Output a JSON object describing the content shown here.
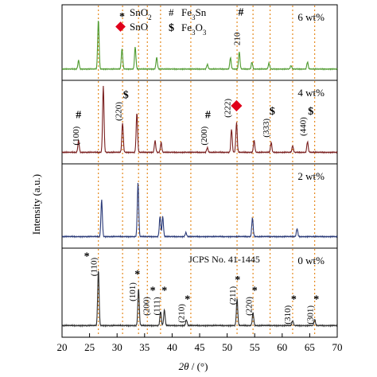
{
  "chart_data": {
    "type": "line",
    "xlabel_theta": "2θ",
    "xlabel_unit": " / (°)",
    "ylabel": "Intensity (a.u.)",
    "xlim": [
      20,
      70
    ],
    "xticks": [
      "20",
      "25",
      "30",
      "35",
      "40",
      "45",
      "50",
      "55",
      "60",
      "65",
      "70"
    ],
    "panel_order": [
      "6 wt%",
      "4 wt%",
      "2 wt%",
      "0 wt%"
    ],
    "reference_lines": [
      26.6,
      33.9,
      37.9,
      51.8,
      54.7,
      57.8,
      61.9,
      65.9,
      31.0,
      35.5,
      43.4
    ],
    "legend": {
      "sno2_symbol": "*",
      "sno2_label": "SnO",
      "sno2_sub": "2",
      "sno_label": "SnO",
      "fe3sn_symbol": "#",
      "fe3sn_label": "Fe",
      "fe3sn_sub": "3",
      "fe3sn_tail": "Sn",
      "fe3o3_symbol": "$",
      "fe3o3_label": "Fe",
      "fe3o3_sub1": "3",
      "fe3o3_mid": "O",
      "fe3o3_sub2": "3"
    },
    "series": [
      {
        "name": "6 wt%",
        "color": "#4e9a2e",
        "peaks": [
          [
            23.0,
            0.15
          ],
          [
            26.6,
            0.85
          ],
          [
            30.9,
            0.35
          ],
          [
            33.3,
            0.38
          ],
          [
            37.2,
            0.2
          ],
          [
            46.4,
            0.08
          ],
          [
            50.6,
            0.2
          ],
          [
            52.2,
            0.3
          ],
          [
            54.5,
            0.12
          ],
          [
            57.6,
            0.1
          ],
          [
            61.6,
            0.06
          ],
          [
            64.6,
            0.12
          ]
        ],
        "annotations": [
          {
            "text": "#",
            "x": 52.5,
            "y": 0.95
          },
          {
            "text": "210",
            "x": 52.3,
            "y": 0.55,
            "rotate": true
          }
        ]
      },
      {
        "name": "4 wt%",
        "color": "#7a1f1f",
        "peaks": [
          [
            23.0,
            0.18
          ],
          [
            27.5,
            1.0
          ],
          [
            31.0,
            0.45
          ],
          [
            33.6,
            0.6
          ],
          [
            36.9,
            0.18
          ],
          [
            38.0,
            0.15
          ],
          [
            46.4,
            0.07
          ],
          [
            50.8,
            0.35
          ],
          [
            51.7,
            0.45
          ],
          [
            54.9,
            0.18
          ],
          [
            58.0,
            0.15
          ],
          [
            61.9,
            0.1
          ],
          [
            64.6,
            0.16
          ]
        ],
        "annotations": [
          {
            "text": "#",
            "x": 23.0,
            "y": 0.55
          },
          {
            "text": "(100)",
            "x": 23.0,
            "y": 0.28,
            "rotate": true
          },
          {
            "text": "(220)",
            "x": 30.8,
            "y": 0.65,
            "rotate": true
          },
          {
            "text": "$",
            "x": 31.6,
            "y": 0.85
          },
          {
            "text": "#",
            "x": 46.5,
            "y": 0.55
          },
          {
            "text": "(200)",
            "x": 46.3,
            "y": 0.28,
            "rotate": true
          },
          {
            "text": "(222)",
            "x": 50.6,
            "y": 0.7,
            "rotate": true
          },
          {
            "text": "(333)",
            "x": 57.6,
            "y": 0.4,
            "rotate": true
          },
          {
            "text": "$",
            "x": 58.2,
            "y": 0.6
          },
          {
            "text": "(440)",
            "x": 64.3,
            "y": 0.42,
            "rotate": true
          },
          {
            "text": "$",
            "x": 65.2,
            "y": 0.6
          }
        ]
      },
      {
        "name": "2 wt%",
        "color": "#2a3a78",
        "peaks": [
          [
            27.2,
            0.55
          ],
          [
            33.8,
            0.8
          ],
          [
            37.8,
            0.3
          ],
          [
            38.3,
            0.3
          ],
          [
            42.5,
            0.06
          ],
          [
            54.6,
            0.28
          ],
          [
            62.7,
            0.12
          ]
        ],
        "annotations": []
      },
      {
        "name": "0 wt%",
        "color": "#2d2d2d",
        "peaks": [
          [
            26.6,
            0.78
          ],
          [
            33.9,
            0.52
          ],
          [
            37.9,
            0.2
          ],
          [
            38.6,
            0.22
          ],
          [
            42.6,
            0.08
          ],
          [
            51.8,
            0.38
          ],
          [
            54.7,
            0.18
          ],
          [
            61.9,
            0.07
          ],
          [
            65.9,
            0.09
          ]
        ],
        "annotations": [
          {
            "text": "*",
            "x": 24.5,
            "y": 0.95
          },
          {
            "text": "(110)",
            "x": 26.3,
            "y": 0.85,
            "rotate": true
          },
          {
            "text": "*",
            "x": 33.7,
            "y": 0.7
          },
          {
            "text": "(101)",
            "x": 33.3,
            "y": 0.5,
            "rotate": true
          },
          {
            "text": "*",
            "x": 36.5,
            "y": 0.47
          },
          {
            "text": "(200)",
            "x": 35.8,
            "y": 0.3,
            "rotate": true
          },
          {
            "text": "*",
            "x": 38.6,
            "y": 0.47
          },
          {
            "text": "(111)",
            "x": 37.7,
            "y": 0.3,
            "rotate": true
          },
          {
            "text": "*",
            "x": 42.8,
            "y": 0.35
          },
          {
            "text": "(210)",
            "x": 42.2,
            "y": 0.2,
            "rotate": true
          },
          {
            "text": "*",
            "x": 51.9,
            "y": 0.62
          },
          {
            "text": "(211)",
            "x": 51.5,
            "y": 0.45,
            "rotate": true
          },
          {
            "text": "*",
            "x": 55.0,
            "y": 0.47
          },
          {
            "text": "(220)",
            "x": 54.5,
            "y": 0.3,
            "rotate": true
          },
          {
            "text": "*",
            "x": 62.1,
            "y": 0.35
          },
          {
            "text": "(310)",
            "x": 61.5,
            "y": 0.18,
            "rotate": true
          },
          {
            "text": "*",
            "x": 66.2,
            "y": 0.35
          },
          {
            "text": "(301)",
            "x": 65.6,
            "y": 0.18,
            "rotate": true
          }
        ]
      }
    ],
    "reference_card": "JCPS No. 41-1445"
  }
}
